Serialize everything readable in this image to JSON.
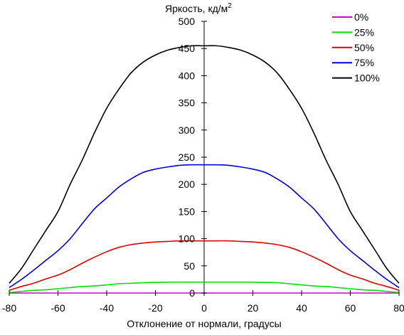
{
  "chart_data": {
    "type": "line",
    "ylabel": "Яркость, кд/м",
    "ylabel_superscript": "2",
    "xlabel": "Отклонение от нормали, градусы",
    "xlim": [
      -80,
      80
    ],
    "ylim": [
      0,
      500
    ],
    "x_ticks": [
      -80,
      -60,
      -40,
      -20,
      0,
      20,
      40,
      60,
      80
    ],
    "y_ticks": [
      0,
      50,
      100,
      150,
      200,
      250,
      300,
      350,
      400,
      450,
      500
    ],
    "x_tick_labels": [
      "-80",
      "-60",
      "-40",
      "-20",
      "0",
      "20",
      "40",
      "60",
      "80"
    ],
    "y_tick_labels": [
      "0",
      "50",
      "100",
      "150",
      "200",
      "250",
      "300",
      "350",
      "400",
      "450",
      "500"
    ],
    "legend_placement": "top-right",
    "grid": false,
    "x": [
      -80,
      -75,
      -70,
      -65,
      -60,
      -55,
      -50,
      -45,
      -40,
      -35,
      -30,
      -25,
      -20,
      -15,
      -10,
      -5,
      0,
      5,
      10,
      15,
      20,
      25,
      30,
      35,
      40,
      45,
      50,
      55,
      60,
      65,
      70,
      75,
      80
    ],
    "series": [
      {
        "name": "0%",
        "color": "#cc00cc",
        "values": [
          0,
          0,
          0,
          0,
          0,
          0,
          0,
          0,
          0,
          0,
          0,
          0,
          0,
          0,
          0,
          0,
          0,
          0,
          0,
          0,
          0,
          0,
          0,
          0,
          0,
          0,
          0,
          0,
          0,
          0,
          0,
          0,
          0
        ]
      },
      {
        "name": "25%",
        "color": "#00dd00",
        "values": [
          1,
          3,
          5,
          6,
          8,
          10,
          12,
          13,
          15,
          17,
          18,
          19,
          19.5,
          20,
          20,
          20,
          20,
          20,
          20,
          20,
          20,
          19.5,
          19,
          17,
          15,
          13,
          12,
          10,
          8,
          6,
          5,
          3,
          1
        ]
      },
      {
        "name": "50%",
        "color": "#dd0000",
        "values": [
          5,
          12,
          18,
          26,
          33,
          43,
          55,
          66,
          76,
          84,
          89,
          92,
          94,
          95,
          96,
          96,
          96,
          96,
          96,
          95,
          94,
          92,
          89,
          84,
          76,
          66,
          55,
          43,
          33,
          26,
          18,
          12,
          5
        ]
      },
      {
        "name": "75%",
        "color": "#0000dd",
        "values": [
          10,
          25,
          42,
          60,
          78,
          100,
          128,
          155,
          175,
          195,
          210,
          222,
          228,
          232,
          235,
          236,
          236,
          236,
          235,
          232,
          228,
          222,
          210,
          195,
          175,
          155,
          128,
          100,
          78,
          60,
          42,
          25,
          10
        ]
      },
      {
        "name": "100%",
        "color": "#000000",
        "values": [
          18,
          45,
          80,
          115,
          150,
          200,
          245,
          295,
          340,
          375,
          405,
          425,
          438,
          447,
          452,
          455,
          455,
          455,
          452,
          447,
          438,
          425,
          405,
          375,
          340,
          295,
          245,
          200,
          150,
          115,
          80,
          45,
          18
        ]
      }
    ]
  }
}
